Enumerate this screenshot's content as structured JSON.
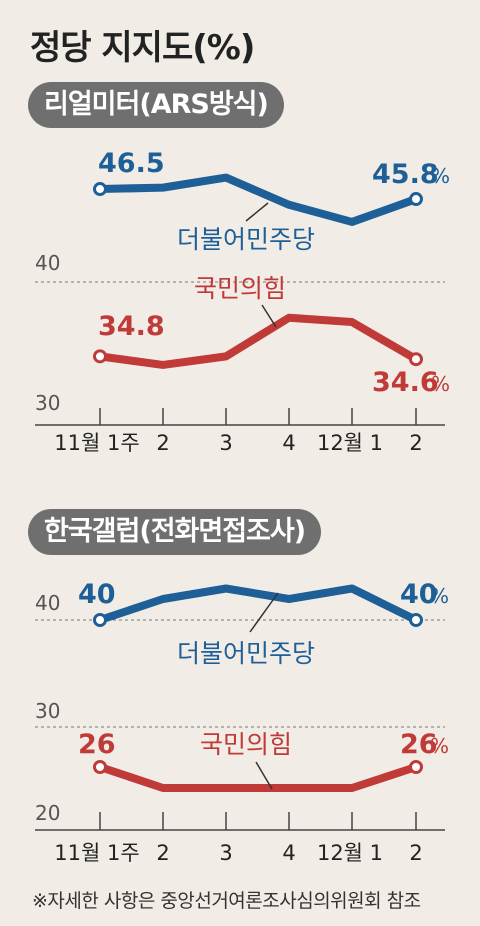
{
  "title": "정당 지지도(%)",
  "footnote": "※자세한 사항은 중앙선거여론조사심의위원회 참조",
  "colors": {
    "blue": "#1e5f98",
    "red": "#c03a37",
    "axis": "#555555",
    "text": "#222222"
  },
  "chart_data": [
    {
      "type": "line",
      "title": "리얼미터(ARS방식)",
      "categories": [
        "11월 1주",
        "2",
        "3",
        "4",
        "12월 1",
        "2"
      ],
      "ylim": [
        30,
        48
      ],
      "ytick_labels": [
        "40",
        "30"
      ],
      "ytick_values": [
        40,
        30
      ],
      "series": [
        {
          "name": "더불어민주당",
          "color": "#1e5f98",
          "values": [
            46.5,
            46.6,
            47.3,
            45.4,
            44.2,
            45.8
          ],
          "labels": {
            "first": "46.5",
            "last": "45.8",
            "last_unit": "%"
          }
        },
        {
          "name": "국민의힘",
          "color": "#c03a37",
          "values": [
            34.8,
            34.2,
            34.8,
            37.5,
            37.2,
            34.6
          ],
          "labels": {
            "first": "34.8",
            "last": "34.6",
            "last_unit": "%"
          }
        }
      ]
    },
    {
      "type": "line",
      "title": "한국갤럽(전화면접조사)",
      "categories": [
        "11월 1주",
        "2",
        "3",
        "4",
        "12월 1",
        "2"
      ],
      "ylim": [
        20,
        43
      ],
      "ytick_labels": [
        "40",
        "30",
        "20"
      ],
      "ytick_values": [
        40,
        30,
        20
      ],
      "series": [
        {
          "name": "더불어민주당",
          "color": "#1e5f98",
          "values": [
            40,
            42,
            43,
            42,
            43,
            40
          ],
          "labels": {
            "first": "40",
            "last": "40",
            "last_unit": "%"
          }
        },
        {
          "name": "국민의힘",
          "color": "#c03a37",
          "values": [
            26,
            24,
            24,
            24,
            24,
            26
          ],
          "labels": {
            "first": "26",
            "last": "26",
            "last_unit": "%"
          }
        }
      ]
    }
  ]
}
